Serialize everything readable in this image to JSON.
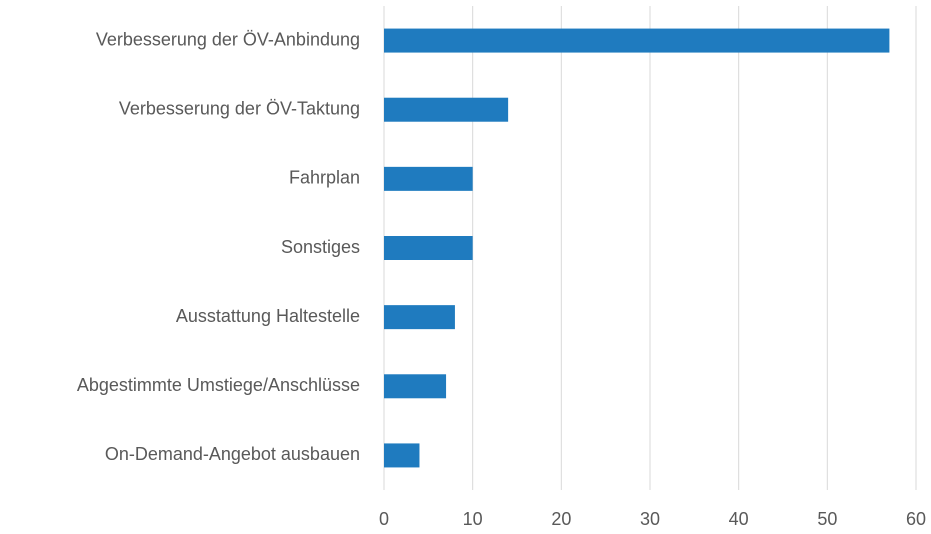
{
  "chart_data": {
    "type": "bar",
    "orientation": "horizontal",
    "categories": [
      "Verbesserung der ÖV-Anbindung",
      "Verbesserung der ÖV-Taktung",
      "Fahrplan",
      "Sonstiges",
      "Ausstattung Haltestelle",
      "Abgestimmte Umstiege/Anschlüsse",
      "On-Demand-Angebot ausbauen"
    ],
    "values": [
      57,
      14,
      10,
      10,
      8,
      7,
      4
    ],
    "color": "#1f7bbf",
    "xlim": [
      0,
      60
    ],
    "xticks": [
      0,
      10,
      20,
      30,
      40,
      50,
      60
    ],
    "grid": true
  }
}
